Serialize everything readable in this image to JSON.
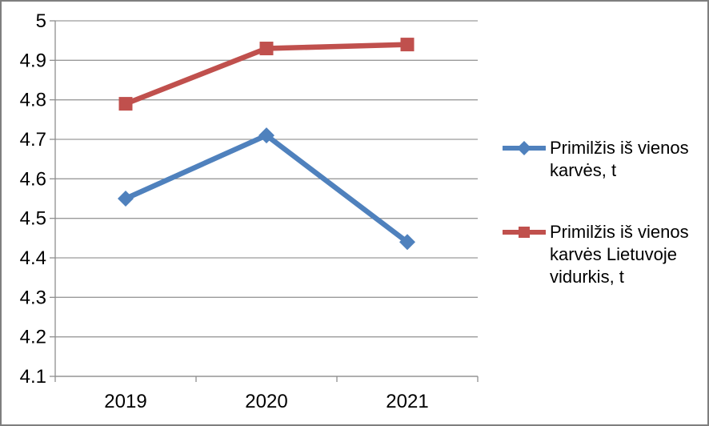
{
  "chart_data": {
    "type": "line",
    "title": "",
    "xlabel": "",
    "ylabel": "",
    "categories": [
      "2019",
      "2020",
      "2021"
    ],
    "series": [
      {
        "name": "Primilžis iš vienos karvės, t",
        "values": [
          4.55,
          4.71,
          4.44
        ],
        "color": "#4F81BD",
        "marker": "diamond"
      },
      {
        "name": "Primilžis iš vienos karvės Lietuvoje vidurkis, t",
        "values": [
          4.79,
          4.93,
          4.94
        ],
        "color": "#C0504D",
        "marker": "square"
      }
    ],
    "ylim": [
      4.1,
      5.0
    ],
    "ytick_step": 0.1,
    "ytick_labels": [
      "4.1",
      "4.2",
      "4.3",
      "4.4",
      "4.5",
      "4.6",
      "4.7",
      "4.8",
      "4.9",
      "5"
    ],
    "grid": true,
    "legend_position": "right",
    "colors": {
      "gridline": "#9a9a9a",
      "axis": "#8e8e8e",
      "text": "#000000",
      "border": "#7f7f7f",
      "background": "#ffffff"
    }
  }
}
